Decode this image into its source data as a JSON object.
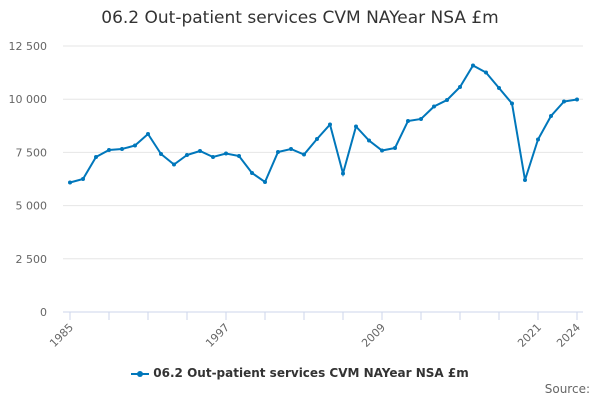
{
  "chart_data": {
    "type": "line",
    "title": "06.2 Out-patient services CVM NAYear NSA £m",
    "xlabel": "",
    "ylabel": "",
    "x": [
      1985,
      1986,
      1987,
      1988,
      1989,
      1990,
      1991,
      1992,
      1993,
      1994,
      1995,
      1996,
      1997,
      1998,
      1999,
      2000,
      2001,
      2002,
      2003,
      2004,
      2005,
      2006,
      2007,
      2008,
      2009,
      2010,
      2011,
      2012,
      2013,
      2014,
      2015,
      2016,
      2017,
      2018,
      2019,
      2020,
      2021,
      2022,
      2023,
      2024
    ],
    "series": [
      {
        "name": "06.2 Out-patient services CVM NAYear NSA £m",
        "color": "#0077bb",
        "values": [
          6085,
          6250,
          7284,
          7613,
          7660,
          7824,
          8365,
          7425,
          6930,
          7378,
          7566,
          7284,
          7448,
          7330,
          6532,
          6110,
          7519,
          7660,
          7400,
          8130,
          8811,
          6509,
          8717,
          8059,
          7589,
          7707,
          8976,
          9070,
          9657,
          9962,
          10573,
          11584,
          11255,
          10526,
          9798,
          6203,
          8106,
          9211,
          9892,
          9986
        ]
      }
    ],
    "ylim": [
      0,
      12500
    ],
    "yticks": [
      0,
      2500,
      5000,
      7500,
      10000,
      12500
    ],
    "ytick_labels": [
      "0",
      "2 500",
      "5 000",
      "7 500",
      "10 000",
      "12 500"
    ],
    "xtick_labels": [
      "1985",
      "1997",
      "2009",
      "2021",
      "2024"
    ],
    "grid": true,
    "legend": "bottom-center"
  },
  "source_label": "Source:"
}
